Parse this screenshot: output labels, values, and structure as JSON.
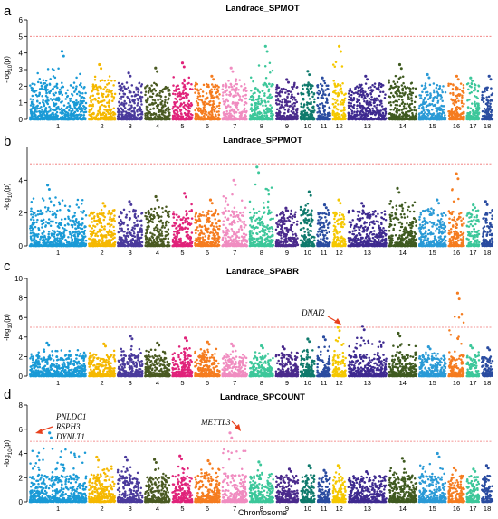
{
  "colors": {
    "threshold": "#f07070",
    "arrow": "#e8401c",
    "axis": "#000000",
    "chromosomes": [
      "#1a9ad6",
      "#f5b800",
      "#4a3a9c",
      "#4a5a22",
      "#e0237a",
      "#f57c1f",
      "#f08cc0",
      "#3cc79a",
      "#4a2a8c",
      "#0f7a6c",
      "#2a4ca0",
      "#f5c800",
      "#3e2a90",
      "#3f5a20",
      "#2a9ad6",
      "#f57c1f",
      "#3cc79a",
      "#2a4ca0"
    ]
  },
  "chart_data": [
    {
      "type": "scatter",
      "panel_label": "a",
      "title": "Landrace_SPMOT",
      "ylabel": "-log10(p)",
      "xlabel": "",
      "ylim": [
        0,
        6
      ],
      "yticks": [
        0,
        1,
        2,
        3,
        4,
        5,
        6
      ],
      "threshold": 5,
      "chromosomes": [
        "1",
        "2",
        "3",
        "4",
        "5",
        "6",
        "7",
        "8",
        "9",
        "10",
        "11",
        "12",
        "13",
        "14",
        "15",
        "16",
        "17",
        "18"
      ],
      "chrom_max": [
        4.1,
        3.3,
        2.8,
        3.1,
        3.4,
        2.6,
        3.1,
        4.4,
        2.4,
        2.9,
        2.5,
        4.4,
        2.6,
        3.3,
        2.7,
        2.6,
        2.5,
        2.6
      ],
      "annotations": []
    },
    {
      "type": "scatter",
      "panel_label": "b",
      "title": "Landrace_SPPMOT",
      "ylabel": "-log10(p)",
      "xlabel": "",
      "ylim": [
        0,
        6
      ],
      "yticks": [
        0,
        2,
        4
      ],
      "threshold": 5,
      "chromosomes": [
        "1",
        "2",
        "3",
        "4",
        "5",
        "6",
        "7",
        "8",
        "9",
        "10",
        "11",
        "12",
        "13",
        "14",
        "15",
        "16",
        "17",
        "18"
      ],
      "chrom_max": [
        3.7,
        2.6,
        2.7,
        3.0,
        3.2,
        2.8,
        4.0,
        4.8,
        2.3,
        3.3,
        2.5,
        2.8,
        2.6,
        3.5,
        2.8,
        4.4,
        2.5,
        2.7
      ],
      "annotations": []
    },
    {
      "type": "scatter",
      "panel_label": "c",
      "title": "Landrace_SPABR",
      "ylabel": "-log10(p)",
      "xlabel": "",
      "ylim": [
        0,
        10
      ],
      "yticks": [
        0,
        2,
        4,
        6,
        8,
        10
      ],
      "threshold": 5,
      "chromosomes": [
        "1",
        "2",
        "3",
        "4",
        "5",
        "6",
        "7",
        "8",
        "9",
        "10",
        "11",
        "12",
        "13",
        "14",
        "15",
        "16",
        "17",
        "18"
      ],
      "chrom_max": [
        3.4,
        3.3,
        4.1,
        3.4,
        3.9,
        3.5,
        3.3,
        3.1,
        3.0,
        3.8,
        4.0,
        5.0,
        5.1,
        4.4,
        3.0,
        8.5,
        3.1,
        2.9
      ],
      "annotations": [
        {
          "label": "DNAI2",
          "chrom": "12",
          "y": 5.0
        }
      ]
    },
    {
      "type": "scatter",
      "panel_label": "d",
      "title": "Landrace_SPCOUNT",
      "ylabel": "-log10(p)",
      "xlabel": "Chromosome",
      "ylim": [
        0,
        8
      ],
      "yticks": [
        0,
        2,
        4,
        6,
        8
      ],
      "threshold": 5,
      "chromosomes": [
        "1",
        "2",
        "3",
        "4",
        "5",
        "6",
        "7",
        "8",
        "9",
        "10",
        "11",
        "12",
        "13",
        "14",
        "15",
        "16",
        "17",
        "18"
      ],
      "chrom_max": [
        5.7,
        3.7,
        3.7,
        3.5,
        3.8,
        3.4,
        5.7,
        3.3,
        2.7,
        3.0,
        2.6,
        3.0,
        2.5,
        3.6,
        4.0,
        2.8,
        2.7,
        3.0
      ],
      "annotations": [
        {
          "label": "PNLDC1",
          "chrom": "1",
          "y": 5.7
        },
        {
          "label": "RSPH3",
          "chrom": "1",
          "y": 5.7
        },
        {
          "label": "DYNLT1",
          "chrom": "1",
          "y": 5.7
        },
        {
          "label": "METTL3",
          "chrom": "7",
          "y": 5.7
        }
      ]
    }
  ]
}
